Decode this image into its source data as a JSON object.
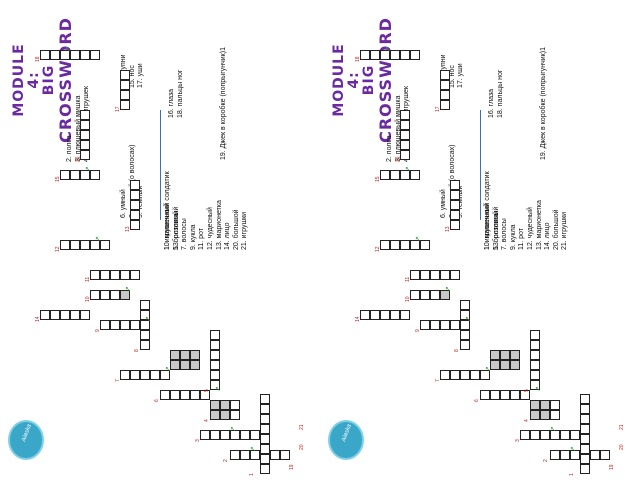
{
  "title": {
    "line1": "MODULE",
    "line2": "4:",
    "line3": "BIG",
    "line4": "CROSSWORD"
  },
  "clues_top": [
    "2. полка",
    "3. плюшевый мишка",
    "4. коробка для игрушек"
  ],
  "clues_mid_col1": [
    "6. умный",
    "8. светлый (о волосах)",
    "9. тёмный"
  ],
  "clues_mid_col2": [
    "14. ступни",
    "15. нос",
    "17. уши"
  ],
  "clues_low": [
    "10. маленький",
    "13. розовый"
  ],
  "clues_down": [
    "1. игрушечный солдатик",
    "5. болтливый",
    "7. волосы",
    "9. кукла",
    "11. рот",
    "12. чудесный",
    "13. марионетка",
    "14. лицо",
    "20. большой",
    "21. игрушки"
  ],
  "clues_right": [
    "16. глаза",
    "18. пальцы ног"
  ],
  "clues_extra": [
    "19. Джек в коробке (попрыгунчик)1"
  ],
  "sticker_text": "Alaska",
  "colors": {
    "title": "#6a2aa0",
    "numbers": "#c02020",
    "arrows": "#2aa040",
    "rule": "#3a70c0",
    "sticker": "#3aa6c8"
  }
}
